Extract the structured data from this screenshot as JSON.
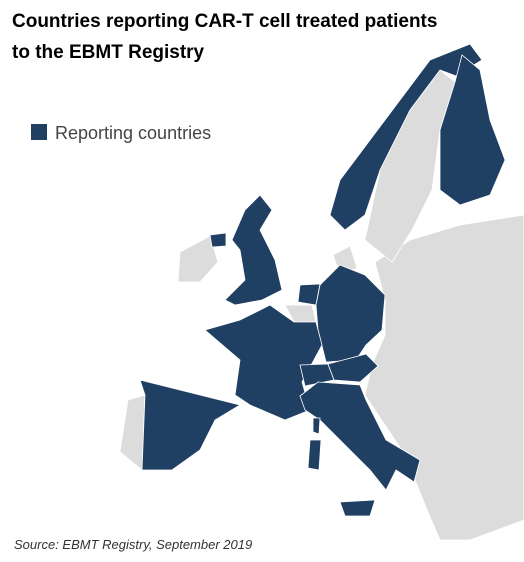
{
  "title": {
    "line1": "Countries reporting CAR-T cell treated patients",
    "line2": "to the EBMT Registry"
  },
  "legend": {
    "label": "Reporting countries"
  },
  "source": "Source: EBMT Registry, September 2019"
}
